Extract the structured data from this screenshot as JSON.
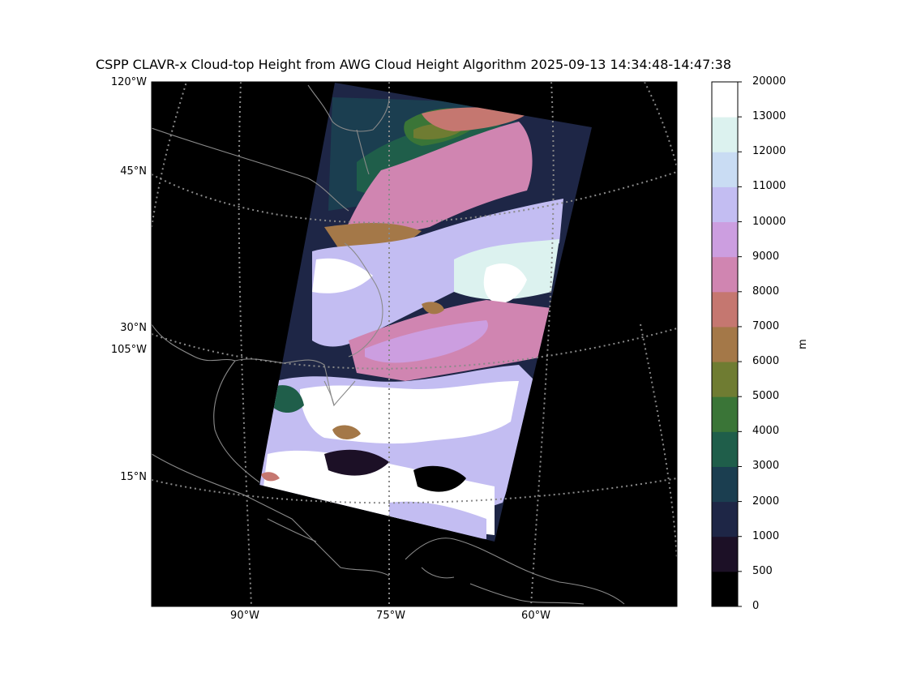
{
  "title": "CSPP CLAVR-x Cloud-top Height from AWG Cloud Height Algorithm 2025-09-13 14:34:48-14:47:38",
  "lat_labels": [
    "45°N",
    "30°N",
    "15°N"
  ],
  "lon_labels_left": [
    "120°W",
    "105°W"
  ],
  "lon_labels_bottom": [
    "90°W",
    "75°W",
    "60°W"
  ],
  "colorbar": {
    "unit": "m",
    "ticks": [
      "0",
      "500",
      "1000",
      "2000",
      "3000",
      "4000",
      "5000",
      "6000",
      "7000",
      "8000",
      "9000",
      "10000",
      "11000",
      "12000",
      "13000",
      "20000"
    ],
    "colors": [
      "#000000",
      "#1c1026",
      "#1e2646",
      "#1b3e50",
      "#1f5e4a",
      "#3a7537",
      "#6f7c32",
      "#a47848",
      "#c57770",
      "#d085b1",
      "#cc9ee0",
      "#c3bdf2",
      "#c9dcf3",
      "#dcf2ef",
      "#ffffff"
    ]
  },
  "colors": {
    "ocean": "#000000",
    "coastline": "#8a8a8a",
    "gridline": "#8a8a8a"
  }
}
